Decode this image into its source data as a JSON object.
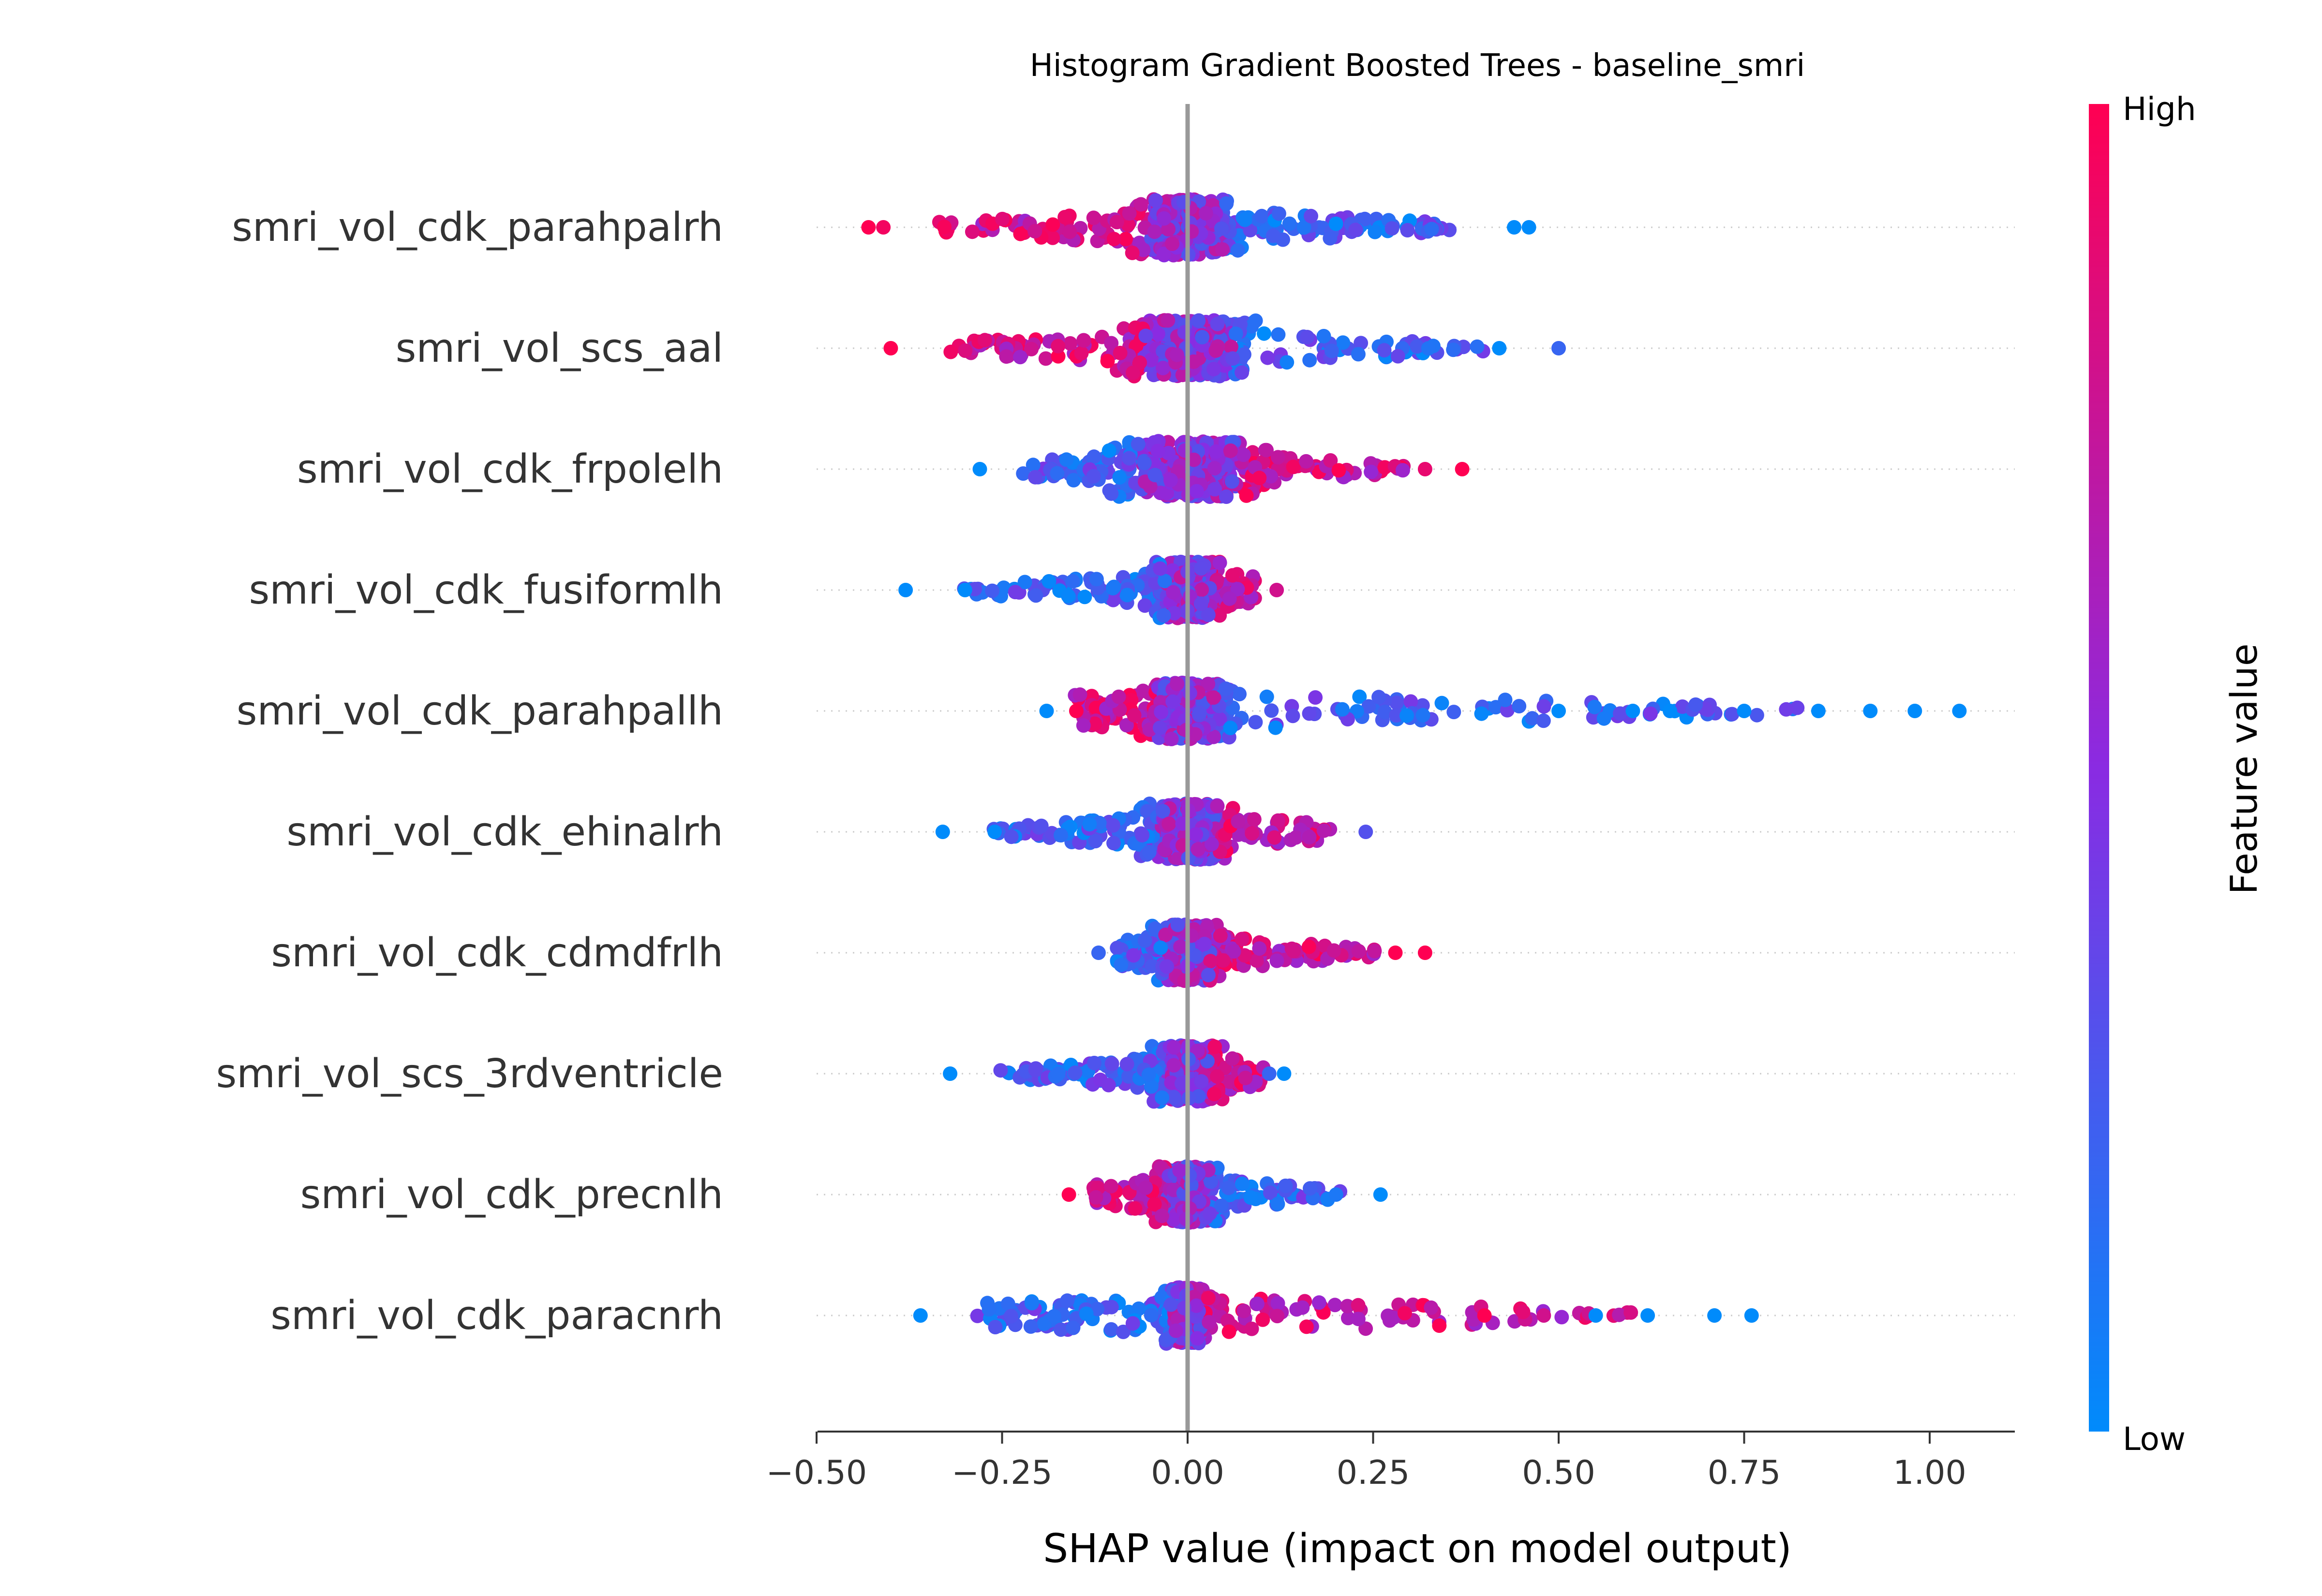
{
  "chart_data": {
    "type": "scatter",
    "subtype": "shap-beeswarm",
    "title": "Histogram Gradient Boosted Trees - baseline_smri",
    "xlabel": "SHAP value (impact on model output)",
    "xlim": [
      -0.5,
      1.12
    ],
    "xticks": [
      -0.5,
      -0.25,
      0.0,
      0.25,
      0.5,
      0.75,
      1.0
    ],
    "xtick_labels": [
      "−0.50",
      "−0.25",
      "0.00",
      "0.25",
      "0.50",
      "0.75",
      "1.00"
    ],
    "zero_line": true,
    "colorbar": {
      "label": "Feature value",
      "high_label": "High",
      "low_label": "Low",
      "high_color": "#ff0052",
      "mid_color": "#8a2be2",
      "low_color": "#008bfb"
    },
    "features": [
      {
        "name": "smri_vol_cdk_parahpalrh",
        "min": -0.43,
        "max": 0.46,
        "core": 0.05,
        "high_side": "left",
        "outliers": [
          [
            -0.43,
            1
          ],
          [
            -0.41,
            0.95
          ],
          [
            0.44,
            0
          ],
          [
            0.46,
            0
          ]
        ]
      },
      {
        "name": "smri_vol_scs_aal",
        "min": -0.4,
        "max": 0.5,
        "core": 0.06,
        "high_side": "left",
        "outliers": [
          [
            -0.4,
            1
          ],
          [
            0.42,
            0
          ],
          [
            0.5,
            0.2
          ]
        ]
      },
      {
        "name": "smri_vol_cdk_frpolelh",
        "min": -0.28,
        "max": 0.37,
        "core": 0.07,
        "high_side": "right",
        "outliers": [
          [
            -0.28,
            0
          ],
          [
            0.32,
            0.9
          ],
          [
            0.37,
            1
          ]
        ]
      },
      {
        "name": "smri_vol_cdk_fusiformlh",
        "min": -0.38,
        "max": 0.12,
        "core": 0.03,
        "high_side": "right",
        "outliers": [
          [
            -0.38,
            0
          ],
          [
            -0.3,
            0
          ],
          [
            0.12,
            0.8
          ]
        ]
      },
      {
        "name": "smri_vol_cdk_parahpallh",
        "min": -0.19,
        "max": 1.04,
        "core": 0.04,
        "high_side": "left",
        "outliers": [
          [
            -0.19,
            0
          ],
          [
            -0.15,
            1
          ],
          [
            0.5,
            0
          ],
          [
            0.6,
            0
          ],
          [
            0.65,
            0
          ],
          [
            0.75,
            0
          ],
          [
            0.85,
            0
          ],
          [
            0.92,
            0
          ],
          [
            0.98,
            0
          ],
          [
            1.04,
            0
          ]
        ]
      },
      {
        "name": "smri_vol_cdk_ehinalrh",
        "min": -0.33,
        "max": 0.24,
        "core": 0.04,
        "high_side": "right",
        "outliers": [
          [
            -0.33,
            0
          ],
          [
            -0.26,
            0
          ],
          [
            0.24,
            0.3
          ]
        ]
      },
      {
        "name": "smri_vol_cdk_cdmdfrlh",
        "min": -0.12,
        "max": 0.32,
        "core": 0.03,
        "high_side": "right",
        "outliers": [
          [
            -0.12,
            0.2
          ],
          [
            0.28,
            1
          ],
          [
            0.32,
            1
          ]
        ]
      },
      {
        "name": "smri_vol_scs_3rdventricle",
        "min": -0.32,
        "max": 0.13,
        "core": 0.03,
        "high_side": "right",
        "outliers": [
          [
            -0.32,
            0
          ],
          [
            0.11,
            0.2
          ],
          [
            0.13,
            0
          ]
        ]
      },
      {
        "name": "smri_vol_cdk_precnlh",
        "min": -0.16,
        "max": 0.26,
        "core": 0.03,
        "high_side": "left",
        "outliers": [
          [
            -0.16,
            1
          ],
          [
            0.2,
            0.1
          ],
          [
            0.26,
            0
          ]
        ]
      },
      {
        "name": "smri_vol_cdk_paracnrh",
        "min": -0.36,
        "max": 0.76,
        "core": 0.02,
        "high_side": "right",
        "outliers": [
          [
            -0.36,
            0
          ],
          [
            0.4,
            1
          ],
          [
            0.48,
            0.8
          ],
          [
            0.55,
            0
          ],
          [
            0.62,
            0
          ],
          [
            0.71,
            0
          ],
          [
            0.76,
            0
          ]
        ]
      }
    ]
  }
}
